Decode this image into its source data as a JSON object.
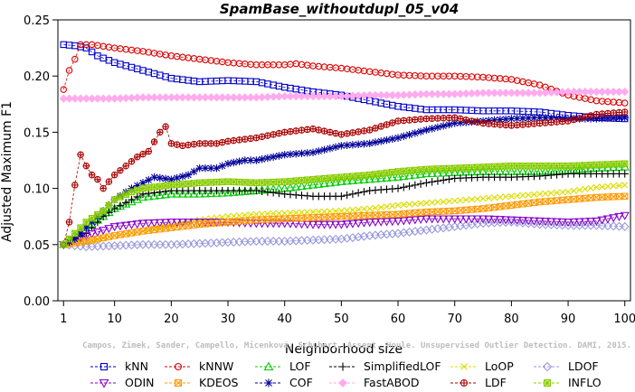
{
  "chart_data": {
    "type": "line",
    "title": "SpamBase_withoutdupl_05_v04",
    "xlabel": "Neighborhood size",
    "ylabel": "Adjusted Maximum F1",
    "xlim": [
      1,
      100
    ],
    "ylim": [
      0.0,
      0.25
    ],
    "x_ticks": [
      "1",
      "10",
      "20",
      "30",
      "40",
      "50",
      "60",
      "70",
      "80",
      "90",
      "100"
    ],
    "y_ticks": [
      "0.00",
      "0.05",
      "0.10",
      "0.15",
      "0.20",
      "0.25"
    ],
    "grid": false,
    "legend_position": "bottom",
    "watermark": "Campos, Zimek, Sander, Campello, Micenková, Schubert, Assent, Houle. Unsupervised Outlier Detection. DAMI, 2015.",
    "series": [
      {
        "name": "kNN",
        "color": "#0000cc",
        "marker": "square",
        "points": [
          [
            1,
            0.228
          ],
          [
            3,
            0.227
          ],
          [
            5,
            0.225
          ],
          [
            7,
            0.218
          ],
          [
            10,
            0.212
          ],
          [
            15,
            0.205
          ],
          [
            20,
            0.198
          ],
          [
            25,
            0.195
          ],
          [
            30,
            0.196
          ],
          [
            35,
            0.195
          ],
          [
            40,
            0.19
          ],
          [
            45,
            0.186
          ],
          [
            50,
            0.183
          ],
          [
            55,
            0.178
          ],
          [
            60,
            0.173
          ],
          [
            65,
            0.17
          ],
          [
            70,
            0.17
          ],
          [
            75,
            0.169
          ],
          [
            80,
            0.169
          ],
          [
            85,
            0.168
          ],
          [
            90,
            0.165
          ],
          [
            95,
            0.163
          ],
          [
            100,
            0.162
          ]
        ]
      },
      {
        "name": "kNNW",
        "color": "#dd0000",
        "marker": "circle",
        "points": [
          [
            1,
            0.188
          ],
          [
            2,
            0.205
          ],
          [
            3,
            0.215
          ],
          [
            4,
            0.228
          ],
          [
            6,
            0.228
          ],
          [
            10,
            0.225
          ],
          [
            15,
            0.222
          ],
          [
            20,
            0.218
          ],
          [
            25,
            0.215
          ],
          [
            30,
            0.212
          ],
          [
            35,
            0.21
          ],
          [
            40,
            0.21
          ],
          [
            42,
            0.211
          ],
          [
            45,
            0.209
          ],
          [
            50,
            0.207
          ],
          [
            55,
            0.204
          ],
          [
            60,
            0.201
          ],
          [
            65,
            0.2
          ],
          [
            70,
            0.2
          ],
          [
            75,
            0.199
          ],
          [
            80,
            0.197
          ],
          [
            85,
            0.192
          ],
          [
            90,
            0.183
          ],
          [
            95,
            0.178
          ],
          [
            100,
            0.176
          ]
        ]
      },
      {
        "name": "LOF",
        "color": "#00cc00",
        "marker": "triangle-up",
        "points": [
          [
            1,
            0.05
          ],
          [
            3,
            0.058
          ],
          [
            5,
            0.065
          ],
          [
            8,
            0.075
          ],
          [
            10,
            0.082
          ],
          [
            13,
            0.088
          ],
          [
            15,
            0.092
          ],
          [
            20,
            0.095
          ],
          [
            25,
            0.095
          ],
          [
            30,
            0.096
          ],
          [
            35,
            0.098
          ],
          [
            40,
            0.1
          ],
          [
            45,
            0.103
          ],
          [
            50,
            0.106
          ],
          [
            55,
            0.108
          ],
          [
            60,
            0.11
          ],
          [
            65,
            0.113
          ],
          [
            70,
            0.114
          ],
          [
            75,
            0.115
          ],
          [
            80,
            0.115
          ],
          [
            85,
            0.115
          ],
          [
            90,
            0.116
          ],
          [
            95,
            0.118
          ],
          [
            100,
            0.119
          ]
        ]
      },
      {
        "name": "SimplifiedLOF",
        "color": "#000000",
        "marker": "plus",
        "points": [
          [
            1,
            0.05
          ],
          [
            3,
            0.055
          ],
          [
            5,
            0.06
          ],
          [
            8,
            0.075
          ],
          [
            10,
            0.082
          ],
          [
            13,
            0.09
          ],
          [
            15,
            0.095
          ],
          [
            20,
            0.098
          ],
          [
            25,
            0.098
          ],
          [
            30,
            0.098
          ],
          [
            35,
            0.098
          ],
          [
            40,
            0.095
          ],
          [
            45,
            0.093
          ],
          [
            50,
            0.093
          ],
          [
            55,
            0.098
          ],
          [
            60,
            0.1
          ],
          [
            65,
            0.105
          ],
          [
            70,
            0.109
          ],
          [
            75,
            0.11
          ],
          [
            80,
            0.11
          ],
          [
            85,
            0.111
          ],
          [
            90,
            0.113
          ],
          [
            95,
            0.113
          ],
          [
            100,
            0.113
          ]
        ]
      },
      {
        "name": "LoOP",
        "color": "#dddd00",
        "marker": "cross",
        "points": [
          [
            1,
            0.05
          ],
          [
            5,
            0.052
          ],
          [
            10,
            0.058
          ],
          [
            15,
            0.062
          ],
          [
            20,
            0.068
          ],
          [
            25,
            0.072
          ],
          [
            30,
            0.075
          ],
          [
            35,
            0.077
          ],
          [
            40,
            0.078
          ],
          [
            45,
            0.079
          ],
          [
            50,
            0.08
          ],
          [
            55,
            0.082
          ],
          [
            60,
            0.085
          ],
          [
            65,
            0.087
          ],
          [
            70,
            0.089
          ],
          [
            75,
            0.091
          ],
          [
            80,
            0.093
          ],
          [
            85,
            0.095
          ],
          [
            90,
            0.097
          ],
          [
            95,
            0.101
          ],
          [
            100,
            0.103
          ]
        ]
      },
      {
        "name": "LDOF",
        "color": "#9999dd",
        "marker": "diamond",
        "points": [
          [
            1,
            0.05
          ],
          [
            5,
            0.048
          ],
          [
            10,
            0.049
          ],
          [
            15,
            0.05
          ],
          [
            20,
            0.05
          ],
          [
            25,
            0.051
          ],
          [
            30,
            0.052
          ],
          [
            35,
            0.053
          ],
          [
            40,
            0.053
          ],
          [
            45,
            0.054
          ],
          [
            50,
            0.055
          ],
          [
            55,
            0.058
          ],
          [
            60,
            0.06
          ],
          [
            65,
            0.063
          ],
          [
            70,
            0.066
          ],
          [
            75,
            0.069
          ],
          [
            80,
            0.07
          ],
          [
            85,
            0.068
          ],
          [
            90,
            0.067
          ],
          [
            95,
            0.067
          ],
          [
            100,
            0.066
          ]
        ]
      },
      {
        "name": "ODIN",
        "color": "#8800cc",
        "marker": "triangle-down",
        "points": [
          [
            1,
            0.05
          ],
          [
            5,
            0.058
          ],
          [
            10,
            0.066
          ],
          [
            15,
            0.069
          ],
          [
            20,
            0.07
          ],
          [
            25,
            0.07
          ],
          [
            30,
            0.07
          ],
          [
            35,
            0.069
          ],
          [
            40,
            0.069
          ],
          [
            45,
            0.068
          ],
          [
            50,
            0.068
          ],
          [
            55,
            0.07
          ],
          [
            60,
            0.071
          ],
          [
            65,
            0.073
          ],
          [
            70,
            0.073
          ],
          [
            75,
            0.073
          ],
          [
            80,
            0.072
          ],
          [
            85,
            0.071
          ],
          [
            90,
            0.07
          ],
          [
            95,
            0.071
          ],
          [
            100,
            0.076
          ]
        ]
      },
      {
        "name": "KDEOS",
        "color": "#ff9900",
        "marker": "square-x",
        "points": [
          [
            1,
            0.05
          ],
          [
            5,
            0.053
          ],
          [
            10,
            0.058
          ],
          [
            15,
            0.062
          ],
          [
            20,
            0.065
          ],
          [
            25,
            0.068
          ],
          [
            30,
            0.07
          ],
          [
            35,
            0.072
          ],
          [
            40,
            0.073
          ],
          [
            45,
            0.074
          ],
          [
            50,
            0.075
          ],
          [
            55,
            0.076
          ],
          [
            60,
            0.077
          ],
          [
            65,
            0.079
          ],
          [
            70,
            0.08
          ],
          [
            75,
            0.082
          ],
          [
            80,
            0.085
          ],
          [
            85,
            0.088
          ],
          [
            90,
            0.09
          ],
          [
            95,
            0.092
          ],
          [
            100,
            0.093
          ]
        ]
      },
      {
        "name": "COF",
        "color": "#000099",
        "marker": "asterisk",
        "points": [
          [
            1,
            0.05
          ],
          [
            3,
            0.055
          ],
          [
            5,
            0.065
          ],
          [
            8,
            0.08
          ],
          [
            10,
            0.09
          ],
          [
            13,
            0.1
          ],
          [
            15,
            0.105
          ],
          [
            17,
            0.11
          ],
          [
            20,
            0.108
          ],
          [
            23,
            0.112
          ],
          [
            25,
            0.118
          ],
          [
            28,
            0.118
          ],
          [
            30,
            0.122
          ],
          [
            33,
            0.125
          ],
          [
            35,
            0.125
          ],
          [
            38,
            0.128
          ],
          [
            40,
            0.13
          ],
          [
            45,
            0.132
          ],
          [
            50,
            0.138
          ],
          [
            55,
            0.14
          ],
          [
            60,
            0.145
          ],
          [
            65,
            0.152
          ],
          [
            70,
            0.158
          ],
          [
            75,
            0.16
          ],
          [
            80,
            0.162
          ],
          [
            85,
            0.163
          ],
          [
            90,
            0.162
          ],
          [
            95,
            0.162
          ],
          [
            100,
            0.163
          ]
        ]
      },
      {
        "name": "FastABOD",
        "color": "#ffaaee",
        "marker": "diamond-filled",
        "points": [
          [
            1,
            0.18
          ],
          [
            5,
            0.18
          ],
          [
            10,
            0.18
          ],
          [
            15,
            0.181
          ],
          [
            20,
            0.181
          ],
          [
            25,
            0.181
          ],
          [
            30,
            0.181
          ],
          [
            35,
            0.181
          ],
          [
            40,
            0.182
          ],
          [
            45,
            0.182
          ],
          [
            50,
            0.182
          ],
          [
            55,
            0.183
          ],
          [
            60,
            0.183
          ],
          [
            65,
            0.184
          ],
          [
            70,
            0.184
          ],
          [
            75,
            0.185
          ],
          [
            80,
            0.185
          ],
          [
            85,
            0.185
          ],
          [
            90,
            0.186
          ],
          [
            95,
            0.186
          ],
          [
            100,
            0.186
          ]
        ]
      },
      {
        "name": "LDF",
        "color": "#aa0000",
        "marker": "circle-plus",
        "points": [
          [
            1,
            0.05
          ],
          [
            2,
            0.07
          ],
          [
            3,
            0.103
          ],
          [
            4,
            0.13
          ],
          [
            5,
            0.12
          ],
          [
            6,
            0.112
          ],
          [
            7,
            0.108
          ],
          [
            8,
            0.1
          ],
          [
            10,
            0.112
          ],
          [
            12,
            0.12
          ],
          [
            14,
            0.128
          ],
          [
            16,
            0.133
          ],
          [
            18,
            0.15
          ],
          [
            19,
            0.155
          ],
          [
            20,
            0.14
          ],
          [
            22,
            0.138
          ],
          [
            25,
            0.14
          ],
          [
            28,
            0.14
          ],
          [
            30,
            0.142
          ],
          [
            35,
            0.145
          ],
          [
            40,
            0.15
          ],
          [
            45,
            0.153
          ],
          [
            50,
            0.148
          ],
          [
            55,
            0.152
          ],
          [
            60,
            0.16
          ],
          [
            65,
            0.162
          ],
          [
            70,
            0.163
          ],
          [
            75,
            0.158
          ],
          [
            80,
            0.156
          ],
          [
            85,
            0.158
          ],
          [
            90,
            0.16
          ],
          [
            95,
            0.166
          ],
          [
            100,
            0.168
          ]
        ]
      },
      {
        "name": "INFLO",
        "color": "#88cc00",
        "marker": "square-star",
        "points": [
          [
            1,
            0.05
          ],
          [
            3,
            0.06
          ],
          [
            5,
            0.07
          ],
          [
            8,
            0.08
          ],
          [
            10,
            0.09
          ],
          [
            13,
            0.097
          ],
          [
            15,
            0.1
          ],
          [
            20,
            0.103
          ],
          [
            25,
            0.105
          ],
          [
            30,
            0.106
          ],
          [
            35,
            0.105
          ],
          [
            40,
            0.106
          ],
          [
            45,
            0.108
          ],
          [
            50,
            0.11
          ],
          [
            55,
            0.112
          ],
          [
            60,
            0.115
          ],
          [
            65,
            0.117
          ],
          [
            70,
            0.118
          ],
          [
            75,
            0.119
          ],
          [
            80,
            0.12
          ],
          [
            85,
            0.12
          ],
          [
            90,
            0.12
          ],
          [
            95,
            0.121
          ],
          [
            100,
            0.122
          ]
        ]
      }
    ]
  }
}
